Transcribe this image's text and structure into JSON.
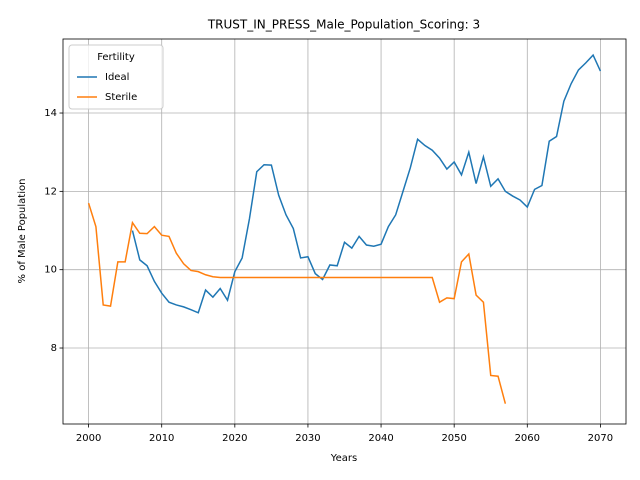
{
  "chart_data": {
    "type": "line",
    "title": "TRUST_IN_PRESS_Male_Population_Scoring: 3",
    "x_label": "Years",
    "y_label": "% of Male Population",
    "legend_title": "Fertility",
    "legend": "upper left",
    "grid": true,
    "xlim": [
      1996.5,
      2073.5
    ],
    "xticks": [
      2000,
      2010,
      2020,
      2030,
      2040,
      2050,
      2060,
      2070
    ],
    "ylim": [
      6.06,
      15.89
    ],
    "yticks": [
      8,
      10,
      12,
      14
    ],
    "x": [
      2000,
      2001,
      2002,
      2003,
      2004,
      2005,
      2006,
      2007,
      2008,
      2009,
      2010,
      2011,
      2012,
      2013,
      2014,
      2015,
      2016,
      2017,
      2018,
      2019,
      2020,
      2021,
      2022,
      2023,
      2024,
      2025,
      2026,
      2027,
      2028,
      2029,
      2030,
      2031,
      2032,
      2033,
      2034,
      2035,
      2036,
      2037,
      2038,
      2039,
      2040,
      2041,
      2042,
      2043,
      2044,
      2045,
      2046,
      2047,
      2048,
      2049,
      2050,
      2051,
      2052,
      2053,
      2054,
      2055,
      2056,
      2057,
      2058,
      2059,
      2060,
      2061,
      2062,
      2063,
      2064,
      2065,
      2066,
      2067,
      2068,
      2069,
      2070
    ],
    "series": [
      {
        "name": "Ideal",
        "color": "#1f77b4",
        "values": [
          null,
          null,
          null,
          null,
          null,
          null,
          11.0,
          10.25,
          10.1,
          9.7,
          9.4,
          9.17,
          9.1,
          9.05,
          8.98,
          8.9,
          9.48,
          9.3,
          9.52,
          9.22,
          9.95,
          10.3,
          11.3,
          12.5,
          12.68,
          12.67,
          11.9,
          11.4,
          11.05,
          10.3,
          10.33,
          9.9,
          9.75,
          10.12,
          10.1,
          10.7,
          10.55,
          10.85,
          10.63,
          10.6,
          10.65,
          11.1,
          11.4,
          12.0,
          12.6,
          13.33,
          13.17,
          13.05,
          12.85,
          12.57,
          12.75,
          12.42,
          13.0,
          12.2,
          12.88,
          12.13,
          12.32,
          12.0,
          11.88,
          11.78,
          11.6,
          12.05,
          12.15,
          13.28,
          13.4,
          14.3,
          14.75,
          15.1,
          15.28,
          15.48,
          15.07
        ]
      },
      {
        "name": "Sterile",
        "color": "#ff7f0e",
        "values": [
          11.7,
          11.1,
          9.1,
          9.07,
          10.2,
          10.2,
          11.2,
          10.93,
          10.92,
          11.1,
          10.88,
          10.85,
          10.42,
          10.15,
          9.98,
          9.95,
          9.87,
          9.82,
          9.8,
          9.8,
          9.8,
          9.8,
          9.8,
          9.8,
          9.8,
          9.8,
          9.8,
          9.8,
          9.8,
          9.8,
          9.8,
          9.8,
          9.8,
          9.8,
          9.8,
          9.8,
          9.8,
          9.8,
          9.8,
          9.8,
          9.8,
          9.8,
          9.8,
          9.8,
          9.8,
          9.8,
          9.8,
          9.8,
          9.17,
          9.28,
          9.26,
          10.2,
          10.4,
          9.35,
          9.17,
          7.3,
          7.28,
          6.58,
          null,
          null,
          null,
          null,
          null,
          null,
          null,
          null,
          null,
          null,
          null,
          null,
          null
        ]
      }
    ]
  }
}
